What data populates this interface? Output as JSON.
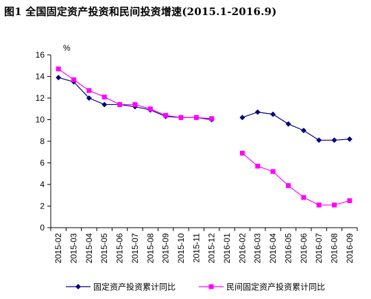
{
  "figure": {
    "title": "图1    全国固定资产投资和民间投资增速(2015.1-2016.9)"
  },
  "chart_data": {
    "type": "line",
    "title": "图1    全国固定资产投资和民间投资增速(2015.1-2016.9)",
    "unit_label": "%",
    "xlabel": "",
    "ylabel": "%",
    "ylim": [
      0,
      16
    ],
    "y_ticks": [
      0,
      2,
      4,
      6,
      8,
      10,
      12,
      14,
      16
    ],
    "grid": false,
    "legend_position": "bottom",
    "categories": [
      "2015-02",
      "2015-03",
      "2015-04",
      "2015-05",
      "2015-06",
      "2015-07",
      "2015-08",
      "2015-09",
      "2015-10",
      "2015-11",
      "2015-12",
      "2016-01",
      "2016-02",
      "2016-03",
      "2016-04",
      "2016-05",
      "2016-06",
      "2016-07",
      "2016-08",
      "2016-09"
    ],
    "series": [
      {
        "name": "固定资产投资累计同比",
        "color": "#000080",
        "marker": "diamond",
        "values": [
          13.9,
          13.5,
          12.0,
          11.4,
          11.4,
          11.2,
          10.9,
          10.3,
          10.2,
          10.2,
          10.0,
          null,
          10.2,
          10.7,
          10.5,
          9.6,
          9.0,
          8.1,
          8.1,
          8.2
        ]
      },
      {
        "name": "民间固定资产投资累计同比",
        "color": "#ff00ff",
        "marker": "square",
        "values": [
          14.7,
          13.7,
          12.7,
          12.1,
          11.4,
          11.4,
          11.0,
          10.4,
          10.2,
          10.2,
          10.1,
          null,
          6.9,
          5.7,
          5.2,
          3.9,
          2.8,
          2.1,
          2.1,
          2.5
        ]
      }
    ]
  }
}
